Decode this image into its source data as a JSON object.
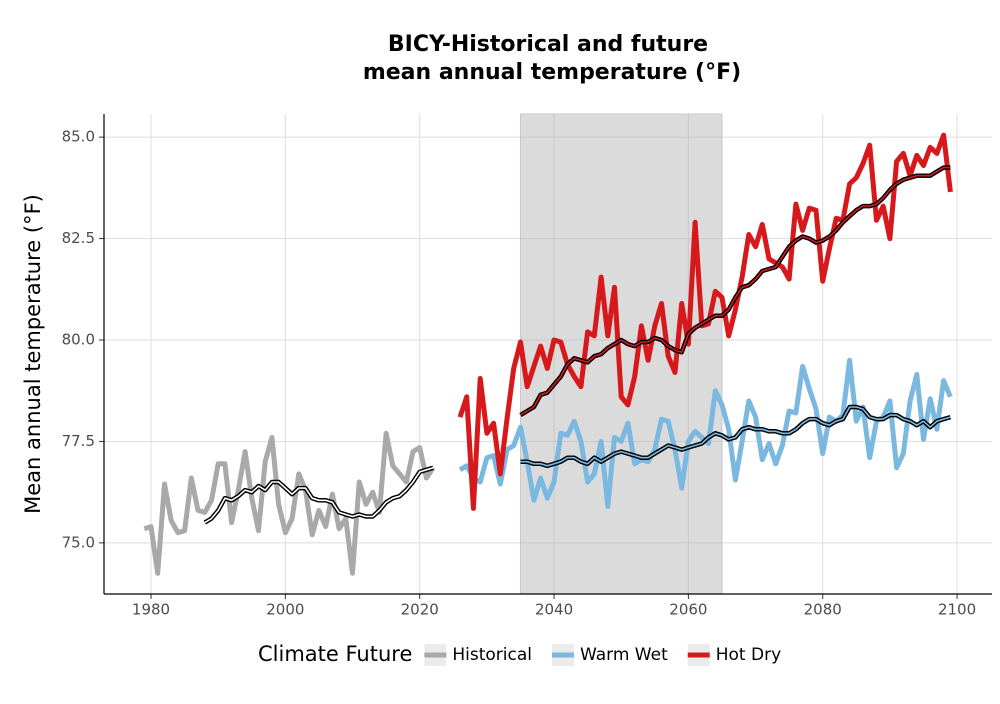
{
  "chart_data": {
    "type": "line",
    "title": [
      "BICY-Historical and future",
      "mean annual temperature (°F)"
    ],
    "y_label": "Mean annual temperature (°F)",
    "legend_title": "Climate Future",
    "legend_position": "bottom",
    "grid": true,
    "xlim": [
      1973,
      2105.2
    ],
    "ylim": [
      73.74,
      85.57
    ],
    "xticks": [
      1980,
      2000,
      2020,
      2040,
      2060,
      2080,
      2100
    ],
    "yticks": [
      {
        "value": 75,
        "label": "75.0"
      },
      77.5,
      {
        "value": 80,
        "label": "80.0"
      },
      82.5,
      {
        "value": 85,
        "label": "85.0"
      }
    ],
    "shade": [
      2035,
      2065
    ],
    "series": [
      {
        "name": "Historical",
        "color": "#a9a9a9",
        "x": [
          1979,
          1980,
          1981,
          1982,
          1983,
          1984,
          1985,
          1986,
          1987,
          1988,
          1989,
          1990,
          1991,
          1992,
          1993,
          1994,
          1995,
          1996,
          1997,
          1998,
          1999,
          2000,
          2001,
          2002,
          2003,
          2004,
          2005,
          2006,
          2007,
          2008,
          2009,
          2010,
          2011,
          2012,
          2013,
          2014,
          2015,
          2016,
          2017,
          2018,
          2019,
          2020,
          2021,
          2022
        ],
        "values": [
          75.35,
          75.4,
          74.25,
          76.45,
          75.55,
          75.25,
          75.3,
          76.6,
          75.8,
          75.75,
          76.05,
          76.95,
          76.95,
          75.5,
          76.3,
          77.25,
          76.1,
          75.3,
          77.0,
          77.6,
          75.95,
          75.25,
          75.6,
          76.7,
          76.3,
          75.2,
          75.8,
          75.4,
          76.2,
          75.35,
          75.6,
          74.25,
          76.5,
          75.95,
          76.25,
          75.75,
          77.7,
          76.9,
          76.7,
          76.5,
          77.25,
          77.35,
          76.6,
          76.85
        ],
        "smooth": {
          "x": [
            1988,
            1989,
            1990,
            1991,
            1992,
            1993,
            1994,
            1995,
            1996,
            1997,
            1998,
            1999,
            2000,
            2001,
            2002,
            2003,
            2004,
            2005,
            2006,
            2007,
            2008,
            2009,
            2010,
            2011,
            2012,
            2013,
            2014,
            2015,
            2016,
            2017,
            2018,
            2019,
            2020,
            2021,
            2022
          ],
          "values": [
            75.5,
            75.6,
            75.8,
            76.1,
            76.05,
            76.15,
            76.3,
            76.25,
            76.4,
            76.3,
            76.5,
            76.5,
            76.35,
            76.2,
            76.35,
            76.35,
            76.1,
            76.05,
            76.05,
            76.0,
            75.75,
            75.7,
            75.65,
            75.7,
            75.65,
            75.65,
            75.8,
            76.0,
            76.1,
            76.15,
            76.3,
            76.5,
            76.75,
            76.8,
            76.85
          ]
        }
      },
      {
        "name": "Warm Wet",
        "color": "#7bb8e0",
        "x": [
          2026,
          2027,
          2028,
          2029,
          2030,
          2031,
          2032,
          2033,
          2034,
          2035,
          2036,
          2037,
          2038,
          2039,
          2040,
          2041,
          2042,
          2043,
          2044,
          2045,
          2046,
          2047,
          2048,
          2049,
          2050,
          2051,
          2052,
          2053,
          2054,
          2055,
          2056,
          2057,
          2058,
          2059,
          2060,
          2061,
          2062,
          2063,
          2064,
          2065,
          2066,
          2067,
          2068,
          2069,
          2070,
          2071,
          2072,
          2073,
          2074,
          2075,
          2076,
          2077,
          2078,
          2079,
          2080,
          2081,
          2082,
          2083,
          2084,
          2085,
          2086,
          2087,
          2088,
          2089,
          2090,
          2091,
          2092,
          2093,
          2094,
          2095,
          2096,
          2097,
          2098,
          2099
        ],
        "values": [
          76.8,
          76.9,
          76.6,
          76.5,
          77.1,
          77.15,
          76.45,
          77.3,
          77.4,
          77.85,
          77.0,
          76.05,
          76.6,
          76.1,
          76.5,
          77.7,
          77.65,
          78.0,
          77.5,
          76.5,
          76.7,
          77.5,
          75.9,
          77.6,
          77.5,
          77.95,
          76.95,
          77.05,
          77.0,
          77.3,
          78.05,
          78.0,
          77.3,
          76.35,
          77.5,
          77.75,
          77.6,
          77.45,
          78.75,
          78.4,
          77.8,
          76.55,
          77.5,
          78.5,
          78.1,
          77.05,
          77.45,
          76.95,
          77.4,
          78.25,
          78.2,
          79.35,
          78.8,
          78.3,
          77.2,
          78.1,
          78.0,
          78.15,
          79.5,
          78.0,
          78.35,
          77.1,
          78.0,
          78.1,
          78.5,
          76.85,
          77.2,
          78.5,
          79.15,
          77.55,
          78.55,
          77.8,
          79.0,
          78.6
        ],
        "smooth": {
          "x": [
            2035,
            2036,
            2037,
            2038,
            2039,
            2040,
            2041,
            2042,
            2043,
            2044,
            2045,
            2046,
            2047,
            2048,
            2049,
            2050,
            2051,
            2052,
            2053,
            2054,
            2055,
            2056,
            2057,
            2058,
            2059,
            2060,
            2061,
            2062,
            2063,
            2064,
            2065,
            2066,
            2067,
            2068,
            2069,
            2070,
            2071,
            2072,
            2073,
            2074,
            2075,
            2076,
            2077,
            2078,
            2079,
            2080,
            2081,
            2082,
            2083,
            2084,
            2085,
            2086,
            2087,
            2088,
            2089,
            2090,
            2091,
            2092,
            2093,
            2094,
            2095,
            2096,
            2097,
            2098,
            2099
          ],
          "values": [
            77.0,
            77.0,
            76.95,
            76.95,
            76.9,
            76.95,
            77.0,
            77.1,
            77.1,
            77.0,
            76.95,
            77.1,
            77.0,
            77.1,
            77.2,
            77.25,
            77.2,
            77.15,
            77.1,
            77.1,
            77.2,
            77.3,
            77.4,
            77.35,
            77.3,
            77.35,
            77.4,
            77.45,
            77.6,
            77.7,
            77.65,
            77.55,
            77.6,
            77.8,
            77.85,
            77.8,
            77.8,
            77.75,
            77.75,
            77.7,
            77.7,
            77.8,
            77.95,
            78.05,
            78.05,
            77.95,
            77.9,
            78.0,
            78.05,
            78.35,
            78.35,
            78.3,
            78.1,
            78.05,
            78.05,
            78.15,
            78.15,
            78.05,
            78.0,
            77.9,
            78.0,
            77.85,
            78.0,
            78.05,
            78.1
          ]
        }
      },
      {
        "name": "Hot Dry",
        "color": "#d7191c",
        "x": [
          2026,
          2027,
          2028,
          2029,
          2030,
          2031,
          2032,
          2033,
          2034,
          2035,
          2036,
          2037,
          2038,
          2039,
          2040,
          2041,
          2042,
          2043,
          2044,
          2045,
          2046,
          2047,
          2048,
          2049,
          2050,
          2051,
          2052,
          2053,
          2054,
          2055,
          2056,
          2057,
          2058,
          2059,
          2060,
          2061,
          2062,
          2063,
          2064,
          2065,
          2066,
          2067,
          2068,
          2069,
          2070,
          2071,
          2072,
          2073,
          2074,
          2075,
          2076,
          2077,
          2078,
          2079,
          2080,
          2081,
          2082,
          2083,
          2084,
          2085,
          2086,
          2087,
          2088,
          2089,
          2090,
          2091,
          2092,
          2093,
          2094,
          2095,
          2096,
          2097,
          2098,
          2099
        ],
        "values": [
          78.1,
          78.6,
          75.85,
          79.05,
          77.7,
          77.95,
          76.7,
          78.05,
          79.3,
          79.95,
          78.85,
          79.35,
          79.85,
          79.3,
          80.0,
          79.95,
          79.4,
          79.1,
          78.85,
          80.2,
          80.1,
          81.55,
          80.1,
          81.3,
          78.6,
          78.4,
          79.1,
          80.35,
          79.5,
          80.35,
          80.9,
          79.6,
          79.2,
          80.9,
          79.9,
          82.9,
          80.35,
          80.4,
          81.2,
          81.05,
          80.1,
          80.75,
          81.55,
          82.6,
          82.3,
          82.85,
          82.0,
          81.9,
          81.8,
          81.5,
          83.35,
          82.7,
          83.25,
          83.2,
          81.45,
          82.25,
          83.0,
          82.95,
          83.85,
          84.0,
          84.35,
          84.8,
          82.95,
          83.3,
          82.5,
          84.4,
          84.6,
          84.05,
          84.55,
          84.3,
          84.75,
          84.6,
          85.05,
          83.65
        ],
        "smooth": {
          "x": [
            2035,
            2036,
            2037,
            2038,
            2039,
            2040,
            2041,
            2042,
            2043,
            2044,
            2045,
            2046,
            2047,
            2048,
            2049,
            2050,
            2051,
            2052,
            2053,
            2054,
            2055,
            2056,
            2057,
            2058,
            2059,
            2060,
            2061,
            2062,
            2063,
            2064,
            2065,
            2066,
            2067,
            2068,
            2069,
            2070,
            2071,
            2072,
            2073,
            2074,
            2075,
            2076,
            2077,
            2078,
            2079,
            2080,
            2081,
            2082,
            2083,
            2084,
            2085,
            2086,
            2087,
            2088,
            2089,
            2090,
            2091,
            2092,
            2093,
            2094,
            2095,
            2096,
            2097,
            2098,
            2099
          ],
          "values": [
            78.15,
            78.25,
            78.35,
            78.65,
            78.7,
            78.9,
            79.1,
            79.4,
            79.55,
            79.5,
            79.45,
            79.6,
            79.65,
            79.8,
            79.9,
            80.0,
            79.9,
            79.85,
            79.95,
            79.95,
            80.05,
            80.0,
            79.85,
            79.75,
            79.7,
            80.15,
            80.3,
            80.4,
            80.5,
            80.6,
            80.6,
            80.75,
            81.05,
            81.3,
            81.35,
            81.5,
            81.7,
            81.75,
            81.8,
            82.05,
            82.3,
            82.45,
            82.55,
            82.5,
            82.4,
            82.45,
            82.55,
            82.7,
            82.9,
            83.05,
            83.2,
            83.3,
            83.3,
            83.35,
            83.5,
            83.7,
            83.85,
            83.95,
            84.0,
            84.05,
            84.05,
            84.05,
            84.15,
            84.25,
            84.25
          ]
        }
      }
    ]
  }
}
